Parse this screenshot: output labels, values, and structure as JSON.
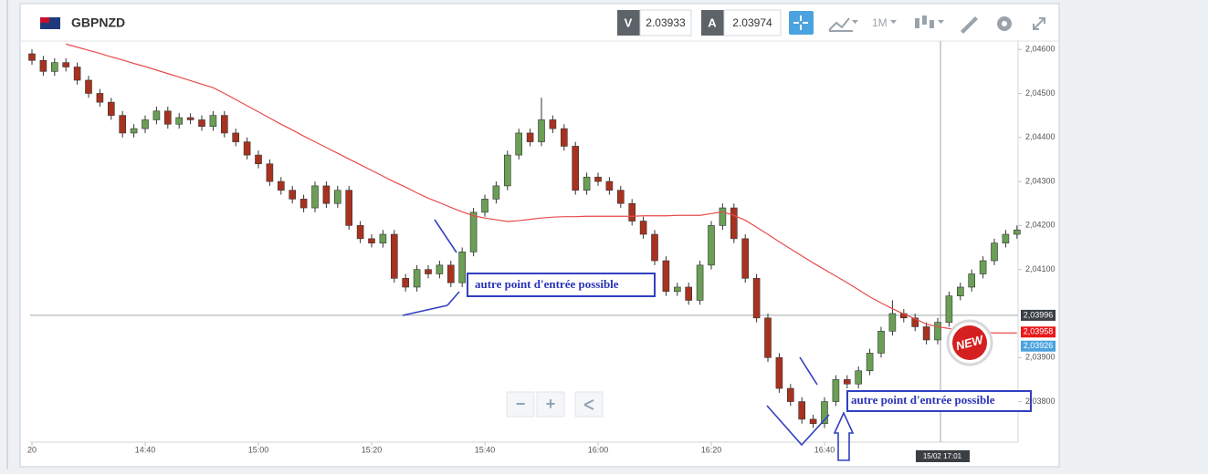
{
  "toolbar": {
    "symbol": "GBPNZD",
    "bid_label": "V",
    "bid": "2.03933",
    "ask_label": "A",
    "ask": "2.03974",
    "timeframe": "1M"
  },
  "controls": {
    "zoom_out": "−",
    "zoom_in": "+"
  },
  "badge": "NEW",
  "annotations": [
    {
      "text": "autre point d'entrée  possible"
    },
    {
      "text": "autre point d'entrée  possible"
    }
  ],
  "chart_data": {
    "type": "candlestick",
    "categories": [
      "20",
      null,
      null,
      null,
      null,
      null,
      null,
      null,
      null,
      null,
      "14:40",
      null,
      null,
      null,
      null,
      null,
      null,
      null,
      null,
      null,
      "15:00",
      null,
      null,
      null,
      null,
      null,
      null,
      null,
      null,
      null,
      "15:20",
      null,
      null,
      null,
      null,
      null,
      null,
      null,
      null,
      null,
      "15:40",
      null,
      null,
      null,
      null,
      null,
      null,
      null,
      null,
      null,
      "16:00",
      null,
      null,
      null,
      null,
      null,
      null,
      null,
      null,
      null,
      "16:20",
      null,
      null,
      null,
      null,
      null,
      null,
      null,
      null,
      null,
      "16:40",
      null,
      null,
      null,
      null,
      null,
      null,
      null,
      null,
      null,
      null,
      null,
      null,
      null,
      null,
      null,
      null,
      null
    ],
    "open": [
      2.0459,
      2.04575,
      2.0455,
      2.0457,
      2.0456,
      2.0453,
      2.045,
      2.0448,
      2.0445,
      2.0441,
      2.0442,
      2.0444,
      2.0446,
      2.0443,
      2.04445,
      2.0444,
      2.04425,
      2.0445,
      2.0441,
      2.0439,
      2.0436,
      2.0434,
      2.043,
      2.0428,
      2.0426,
      2.0424,
      2.0429,
      2.0425,
      2.0428,
      2.042,
      2.0417,
      2.0416,
      2.0418,
      2.0408,
      2.0406,
      2.041,
      2.0409,
      2.0411,
      2.0407,
      2.0414,
      2.0423,
      2.0426,
      2.0429,
      2.0436,
      2.0441,
      2.0439,
      2.0444,
      2.0442,
      2.0438,
      2.0428,
      2.0431,
      2.043,
      2.0428,
      2.0425,
      2.0421,
      2.0418,
      2.0412,
      2.0405,
      2.0406,
      2.0403,
      2.0411,
      2.042,
      2.0424,
      2.0417,
      2.0408,
      2.0399,
      2.039,
      2.0383,
      2.038,
      2.0376,
      2.0375,
      2.038,
      2.0385,
      2.0384,
      2.0387,
      2.0391,
      2.0396,
      2.04,
      2.0399,
      2.0397,
      2.0394,
      2.0398,
      2.0404,
      2.0406,
      2.0409,
      2.0412,
      2.0416,
      2.0418
    ],
    "high": [
      2.046,
      2.04585,
      2.0458,
      2.0458,
      2.0457,
      2.0454,
      2.0451,
      2.0449,
      2.0446,
      2.0443,
      2.0445,
      2.0447,
      2.0447,
      2.04455,
      2.04455,
      2.0445,
      2.0446,
      2.0446,
      2.0442,
      2.044,
      2.0437,
      2.0435,
      2.0431,
      2.0429,
      2.0427,
      2.043,
      2.043,
      2.0429,
      2.0429,
      2.0421,
      2.0418,
      2.0419,
      2.0419,
      2.0409,
      2.0411,
      2.0411,
      2.0412,
      2.0412,
      2.0415,
      2.0424,
      2.0427,
      2.043,
      2.0437,
      2.0442,
      2.0442,
      2.0449,
      2.0445,
      2.0443,
      2.0439,
      2.0432,
      2.0432,
      2.0431,
      2.0429,
      2.0426,
      2.0422,
      2.0419,
      2.0413,
      2.0407,
      2.0407,
      2.0412,
      2.0421,
      2.0425,
      2.0425,
      2.0418,
      2.0409,
      2.04,
      2.0391,
      2.0384,
      2.0381,
      2.0377,
      2.0381,
      2.0386,
      2.0386,
      2.0388,
      2.0392,
      2.0397,
      2.0403,
      2.0401,
      2.04,
      2.0398,
      2.0399,
      2.0405,
      2.0407,
      2.041,
      2.0413,
      2.0417,
      2.0419,
      2.042
    ],
    "low": [
      2.04565,
      2.0454,
      2.0454,
      2.0455,
      2.0452,
      2.0449,
      2.0447,
      2.0444,
      2.044,
      2.044,
      2.0441,
      2.0443,
      2.0442,
      2.0442,
      2.0443,
      2.04415,
      2.04415,
      2.044,
      2.0438,
      2.0435,
      2.0433,
      2.0429,
      2.0427,
      2.0425,
      2.0423,
      2.0423,
      2.0424,
      2.0424,
      2.0419,
      2.0416,
      2.0415,
      2.0415,
      2.0407,
      2.0405,
      2.0405,
      2.0408,
      2.0408,
      2.0406,
      2.0406,
      2.0413,
      2.0422,
      2.0425,
      2.0428,
      2.0435,
      2.0438,
      2.0438,
      2.0441,
      2.0437,
      2.0427,
      2.0427,
      2.0429,
      2.0427,
      2.0424,
      2.042,
      2.0417,
      2.0411,
      2.0404,
      2.0404,
      2.0402,
      2.0402,
      2.041,
      2.0419,
      2.0416,
      2.0407,
      2.0398,
      2.0389,
      2.0382,
      2.0379,
      2.0375,
      2.0374,
      2.0374,
      2.0379,
      2.0383,
      2.0383,
      2.0386,
      2.039,
      2.0395,
      2.0398,
      2.0396,
      2.0393,
      2.0393,
      2.0397,
      2.0403,
      2.0405,
      2.0408,
      2.0411,
      2.0415,
      2.0417
    ],
    "close": [
      2.04575,
      2.0455,
      2.0457,
      2.0456,
      2.0453,
      2.045,
      2.0448,
      2.0445,
      2.0441,
      2.0442,
      2.0444,
      2.0446,
      2.0443,
      2.04445,
      2.0444,
      2.04425,
      2.0445,
      2.0441,
      2.0439,
      2.0436,
      2.0434,
      2.043,
      2.0428,
      2.0426,
      2.0424,
      2.0429,
      2.0425,
      2.0428,
      2.042,
      2.0417,
      2.0416,
      2.0418,
      2.0408,
      2.0406,
      2.041,
      2.0409,
      2.0411,
      2.0407,
      2.0414,
      2.0423,
      2.0426,
      2.0429,
      2.0436,
      2.0441,
      2.0439,
      2.0444,
      2.0442,
      2.0438,
      2.0428,
      2.0431,
      2.043,
      2.0428,
      2.0425,
      2.0421,
      2.0418,
      2.0412,
      2.0405,
      2.0406,
      2.0403,
      2.0411,
      2.042,
      2.0424,
      2.0417,
      2.0408,
      2.0399,
      2.039,
      2.0383,
      2.038,
      2.0376,
      2.0375,
      2.038,
      2.0385,
      2.0384,
      2.0387,
      2.0391,
      2.0396,
      2.04,
      2.0399,
      2.0397,
      2.0394,
      2.0398,
      2.0404,
      2.0406,
      2.0409,
      2.0412,
      2.0416,
      2.0418,
      2.0419
    ],
    "up_color": "#6a9f55",
    "down_color": "#a8321f",
    "ma": {
      "color": "#e84c4c",
      "values": [
        null,
        null,
        null,
        2.04612,
        2.04605,
        2.04598,
        2.04591,
        2.04583,
        2.04576,
        2.04568,
        2.04561,
        2.04553,
        2.04545,
        2.04537,
        2.04529,
        2.04521,
        2.04513,
        2.045,
        2.04486,
        2.04472,
        2.04458,
        2.04444,
        2.0443,
        2.04417,
        2.04403,
        2.0439,
        2.04377,
        2.04364,
        2.04351,
        2.04338,
        2.04325,
        2.04312,
        2.04299,
        2.04287,
        2.04274,
        2.04262,
        2.04252,
        2.04241,
        2.04231,
        2.04222,
        2.04217,
        2.04213,
        2.04209,
        2.04211,
        2.04214,
        2.04217,
        2.04219,
        2.0422,
        2.0422,
        2.04221,
        2.04221,
        2.04221,
        2.04221,
        2.04221,
        2.04222,
        2.04222,
        2.04222,
        2.04223,
        2.04223,
        2.04223,
        2.04227,
        2.04231,
        2.04223,
        2.04212,
        2.04196,
        2.0418,
        2.04163,
        2.04147,
        2.04131,
        2.04115,
        2.041,
        2.04085,
        2.0407,
        2.04054,
        2.04038,
        2.04024,
        2.04011,
        2.03999,
        2.03988,
        2.03976,
        2.0397,
        2.03966,
        2.03962,
        2.03959,
        2.03957,
        2.03956,
        2.03956,
        2.03956
      ]
    },
    "ylim": [
      2.03708,
      2.04619
    ],
    "yticks": [
      {
        "value": 2.046,
        "label": "2,04600"
      },
      {
        "value": 2.045,
        "label": "2,04500"
      },
      {
        "value": 2.044,
        "label": "2,04400"
      },
      {
        "value": 2.043,
        "label": "2,04300"
      },
      {
        "value": 2.042,
        "label": "2,04200"
      },
      {
        "value": 2.041,
        "label": "2,04100"
      },
      {
        "value": 2.039,
        "label": "2,03900"
      },
      {
        "value": 2.038,
        "label": "2,03800"
      }
    ],
    "price_markers": [
      {
        "value": 2.03996,
        "label": "2,03996",
        "color": "#3a3f44"
      },
      {
        "value": 2.03958,
        "label": "2,03958",
        "color": "#e8191b"
      },
      {
        "value": 2.03926,
        "label": "2,03926",
        "color": "#4aa3df"
      }
    ],
    "crosshair": {
      "value": 2.03996,
      "label": "15/02 17:01"
    }
  }
}
